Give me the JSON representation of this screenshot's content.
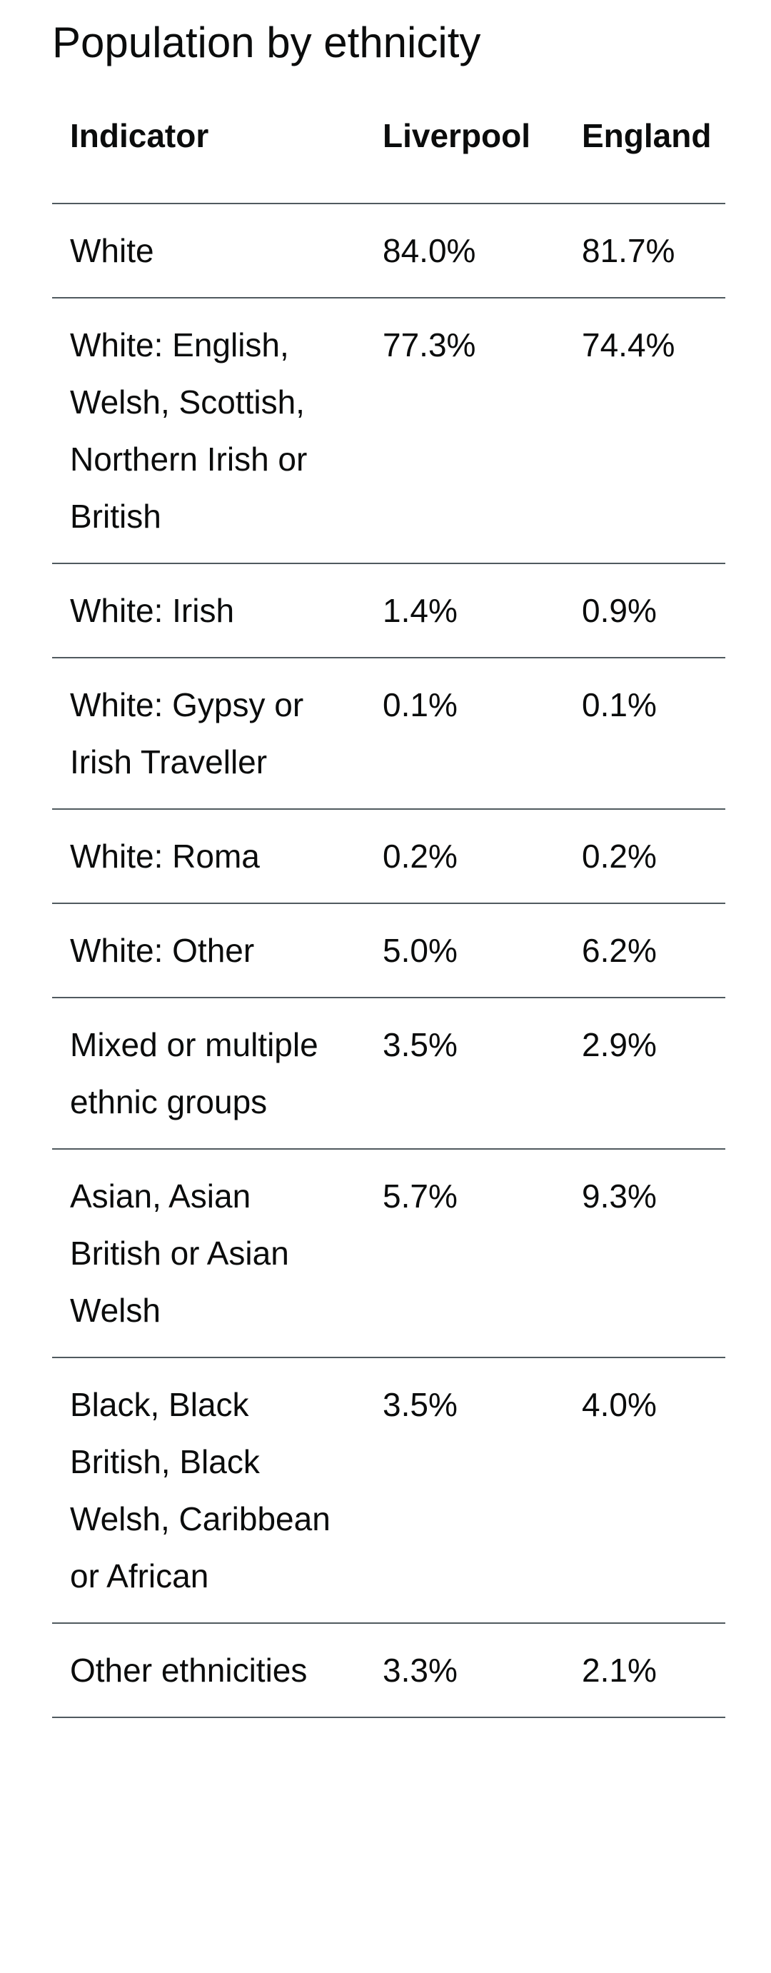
{
  "title": "Population by ethnicity",
  "table": {
    "headers": [
      "Indicator",
      "Liverpool",
      "England"
    ],
    "rows": [
      [
        "White",
        "84.0%",
        "81.7%"
      ],
      [
        "White: English, Welsh, Scottish, Northern Irish or British",
        "77.3%",
        "74.4%"
      ],
      [
        "White: Irish",
        "1.4%",
        "0.9%"
      ],
      [
        "White: Gypsy or Irish Traveller",
        "0.1%",
        "0.1%"
      ],
      [
        "White: Roma",
        "0.2%",
        "0.2%"
      ],
      [
        "White: Other",
        "5.0%",
        "6.2%"
      ],
      [
        "Mixed or multiple ethnic groups",
        "3.5%",
        "2.9%"
      ],
      [
        "Asian, Asian British or Asian Welsh",
        "5.7%",
        "9.3%"
      ],
      [
        "Black, Black British, Black Welsh, Caribbean or African",
        "3.5%",
        "4.0%"
      ],
      [
        "Other ethnicities",
        "3.3%",
        "2.1%"
      ]
    ]
  }
}
